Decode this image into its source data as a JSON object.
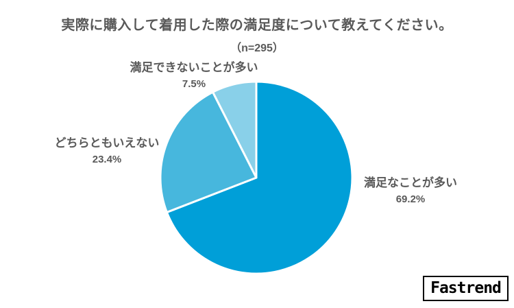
{
  "chart_data": {
    "type": "pie",
    "title": "実際に購入して着用した際の満足度について教えてください。",
    "subtitle": "（n=295）",
    "n": 295,
    "start_angle_deg_from_top": 0,
    "direction": "clockwise",
    "stroke_color": "#ffffff",
    "text_color": "#595959",
    "slices": [
      {
        "label": "満足なことが多い",
        "value": 69.2,
        "pct_label": "69.2%",
        "color": "#009FD8"
      },
      {
        "label": "どちらともいえない",
        "value": 23.4,
        "pct_label": "23.4%",
        "color": "#47B7DD"
      },
      {
        "label": "満足できないことが多い",
        "value": 7.5,
        "pct_label": "7.5%",
        "color": "#89D0E9"
      }
    ]
  },
  "branding": {
    "logo_text": "Fastrend"
  }
}
